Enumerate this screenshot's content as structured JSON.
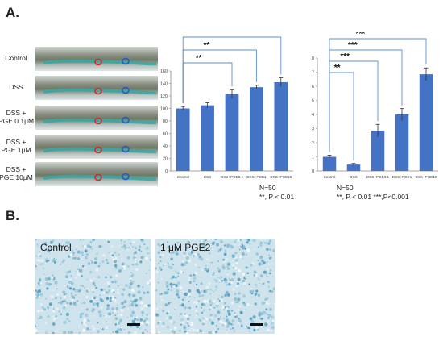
{
  "panel_a_label": "A.",
  "panel_b_label": "B.",
  "fish_rows": [
    {
      "label_line1": "Control",
      "label_line2": ""
    },
    {
      "label_line1": "DSS",
      "label_line2": ""
    },
    {
      "label_line1": "DSS +",
      "label_line2": "PGE 0.1μM"
    },
    {
      "label_line1": "DSS +",
      "label_line2": "PGE 1μM"
    },
    {
      "label_line1": "DSS +",
      "label_line2": "PGE 10μM"
    }
  ],
  "chart_data": [
    {
      "type": "bar",
      "categories": [
        "Control",
        "DSS",
        "DSS+PGE0.1",
        "DSS+PGE1",
        "DSS+PGE10"
      ],
      "values": [
        100,
        105,
        123,
        134,
        142
      ],
      "errors": [
        3,
        4,
        7,
        3,
        7
      ],
      "ylim": [
        0,
        160
      ],
      "yticks": [
        0,
        20,
        40,
        60,
        80,
        100,
        120,
        140,
        160
      ],
      "color": "#4472c4",
      "significance": [
        {
          "from": 0,
          "to": 2,
          "label": "**"
        },
        {
          "from": 0,
          "to": 3,
          "label": "**"
        },
        {
          "from": 0,
          "to": 4,
          "label": "**"
        }
      ],
      "note_lines": [
        "N=50",
        "**, P < 0.01"
      ]
    },
    {
      "type": "bar",
      "categories": [
        "Control",
        "DSS",
        "DSS+PGE0.1",
        "DSS+PGE1",
        "DSS+PGE10"
      ],
      "values": [
        1.0,
        0.45,
        2.85,
        4.0,
        6.85
      ],
      "errors": [
        0.12,
        0.08,
        0.45,
        0.42,
        0.45
      ],
      "ylim": [
        0,
        8
      ],
      "yticks": [
        0,
        1,
        2,
        3,
        4,
        5,
        6,
        7,
        8
      ],
      "color": "#4472c4",
      "significance": [
        {
          "from": 0,
          "to": 1,
          "label": "**"
        },
        {
          "from": 0,
          "to": 2,
          "label": "***"
        },
        {
          "from": 0,
          "to": 3,
          "label": "***"
        },
        {
          "from": 0,
          "to": 4,
          "label": "***"
        }
      ],
      "note_lines": [
        "N=50",
        "**, P < 0.01 ***,P<0.001"
      ]
    }
  ],
  "micrographs": [
    {
      "label": "Control"
    },
    {
      "label": "1 μM PGE2"
    }
  ]
}
